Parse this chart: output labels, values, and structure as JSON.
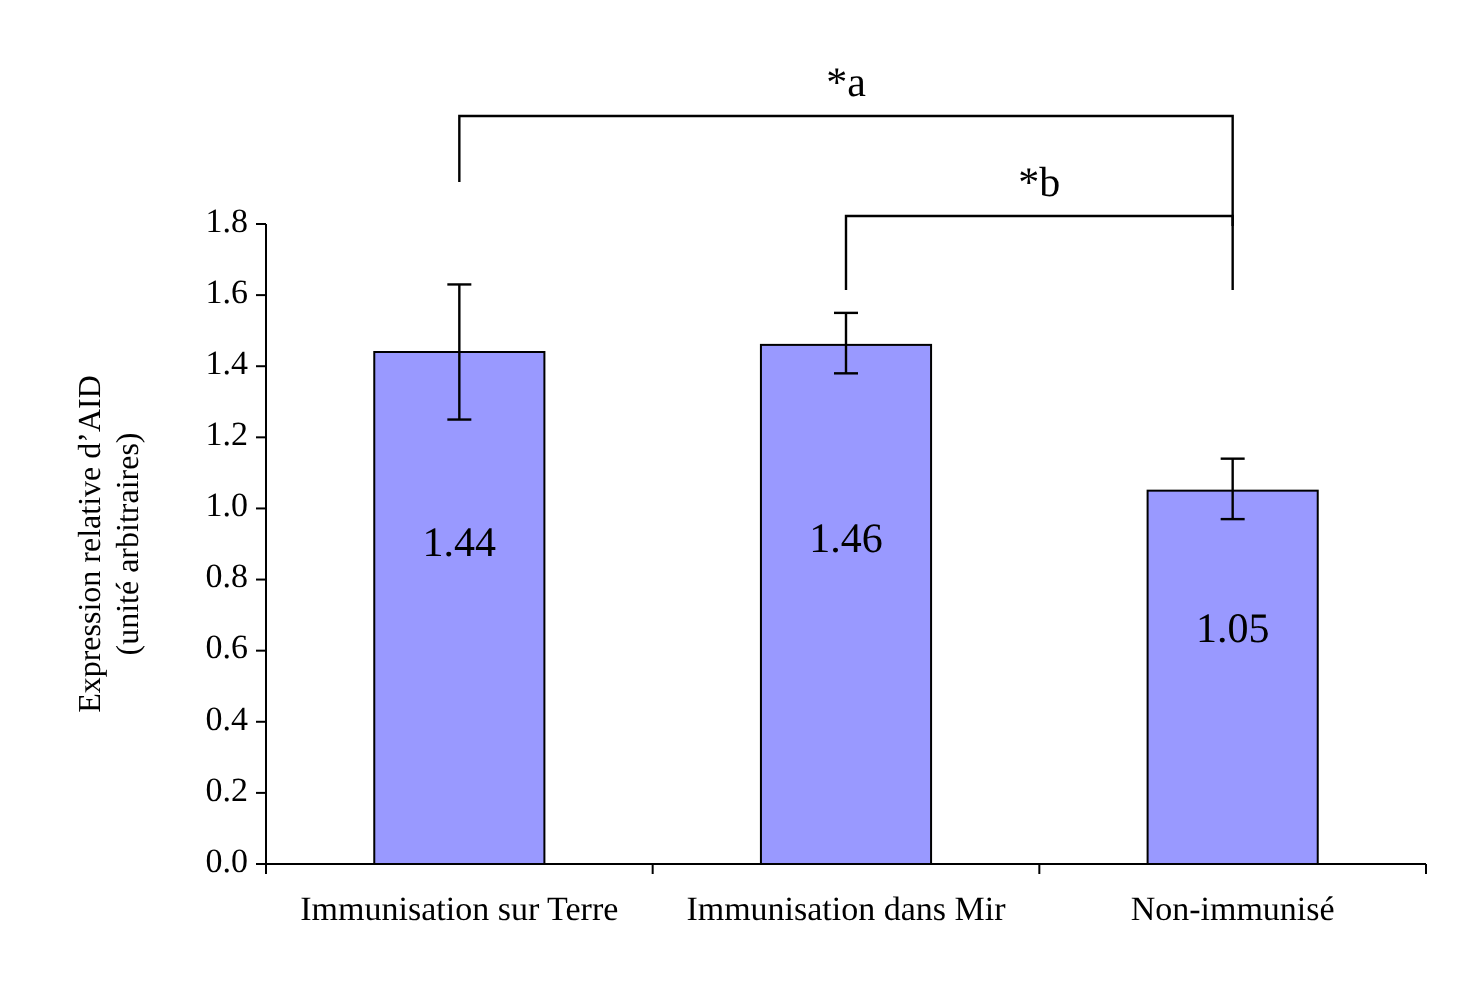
{
  "chart_data": {
    "type": "bar",
    "ylabel": "Expression relative d’AID\n(unité arbitraires)",
    "categories": [
      "Immunisation sur Terre",
      "Immunisation dans Mir",
      "Non-immunisé"
    ],
    "values": [
      1.44,
      1.46,
      1.05
    ],
    "color": "#9999ff",
    "errors": [
      [
        1.25,
        1.63
      ],
      [
        1.38,
        1.55
      ],
      [
        0.97,
        1.14
      ]
    ],
    "data_labels": true,
    "ylim": [
      0,
      1.8
    ],
    "yticks": [
      {
        "value": 0,
        "label": "0.0"
      },
      {
        "value": 0.2,
        "label": "0.2"
      },
      {
        "value": 0.4,
        "label": "0.4"
      },
      {
        "value": 0.6,
        "label": "0.6"
      },
      {
        "value": 0.8,
        "label": "0.8"
      },
      {
        "value": 1,
        "label": "1.0"
      },
      {
        "value": 1.2,
        "label": "1.2"
      },
      {
        "value": 1.4,
        "label": "1.4"
      },
      {
        "value": 1.6,
        "label": "1.6"
      },
      {
        "value": 1.8,
        "label": "1.8"
      }
    ],
    "grid": false,
    "annotations": [
      "*a",
      "*b"
    ]
  }
}
